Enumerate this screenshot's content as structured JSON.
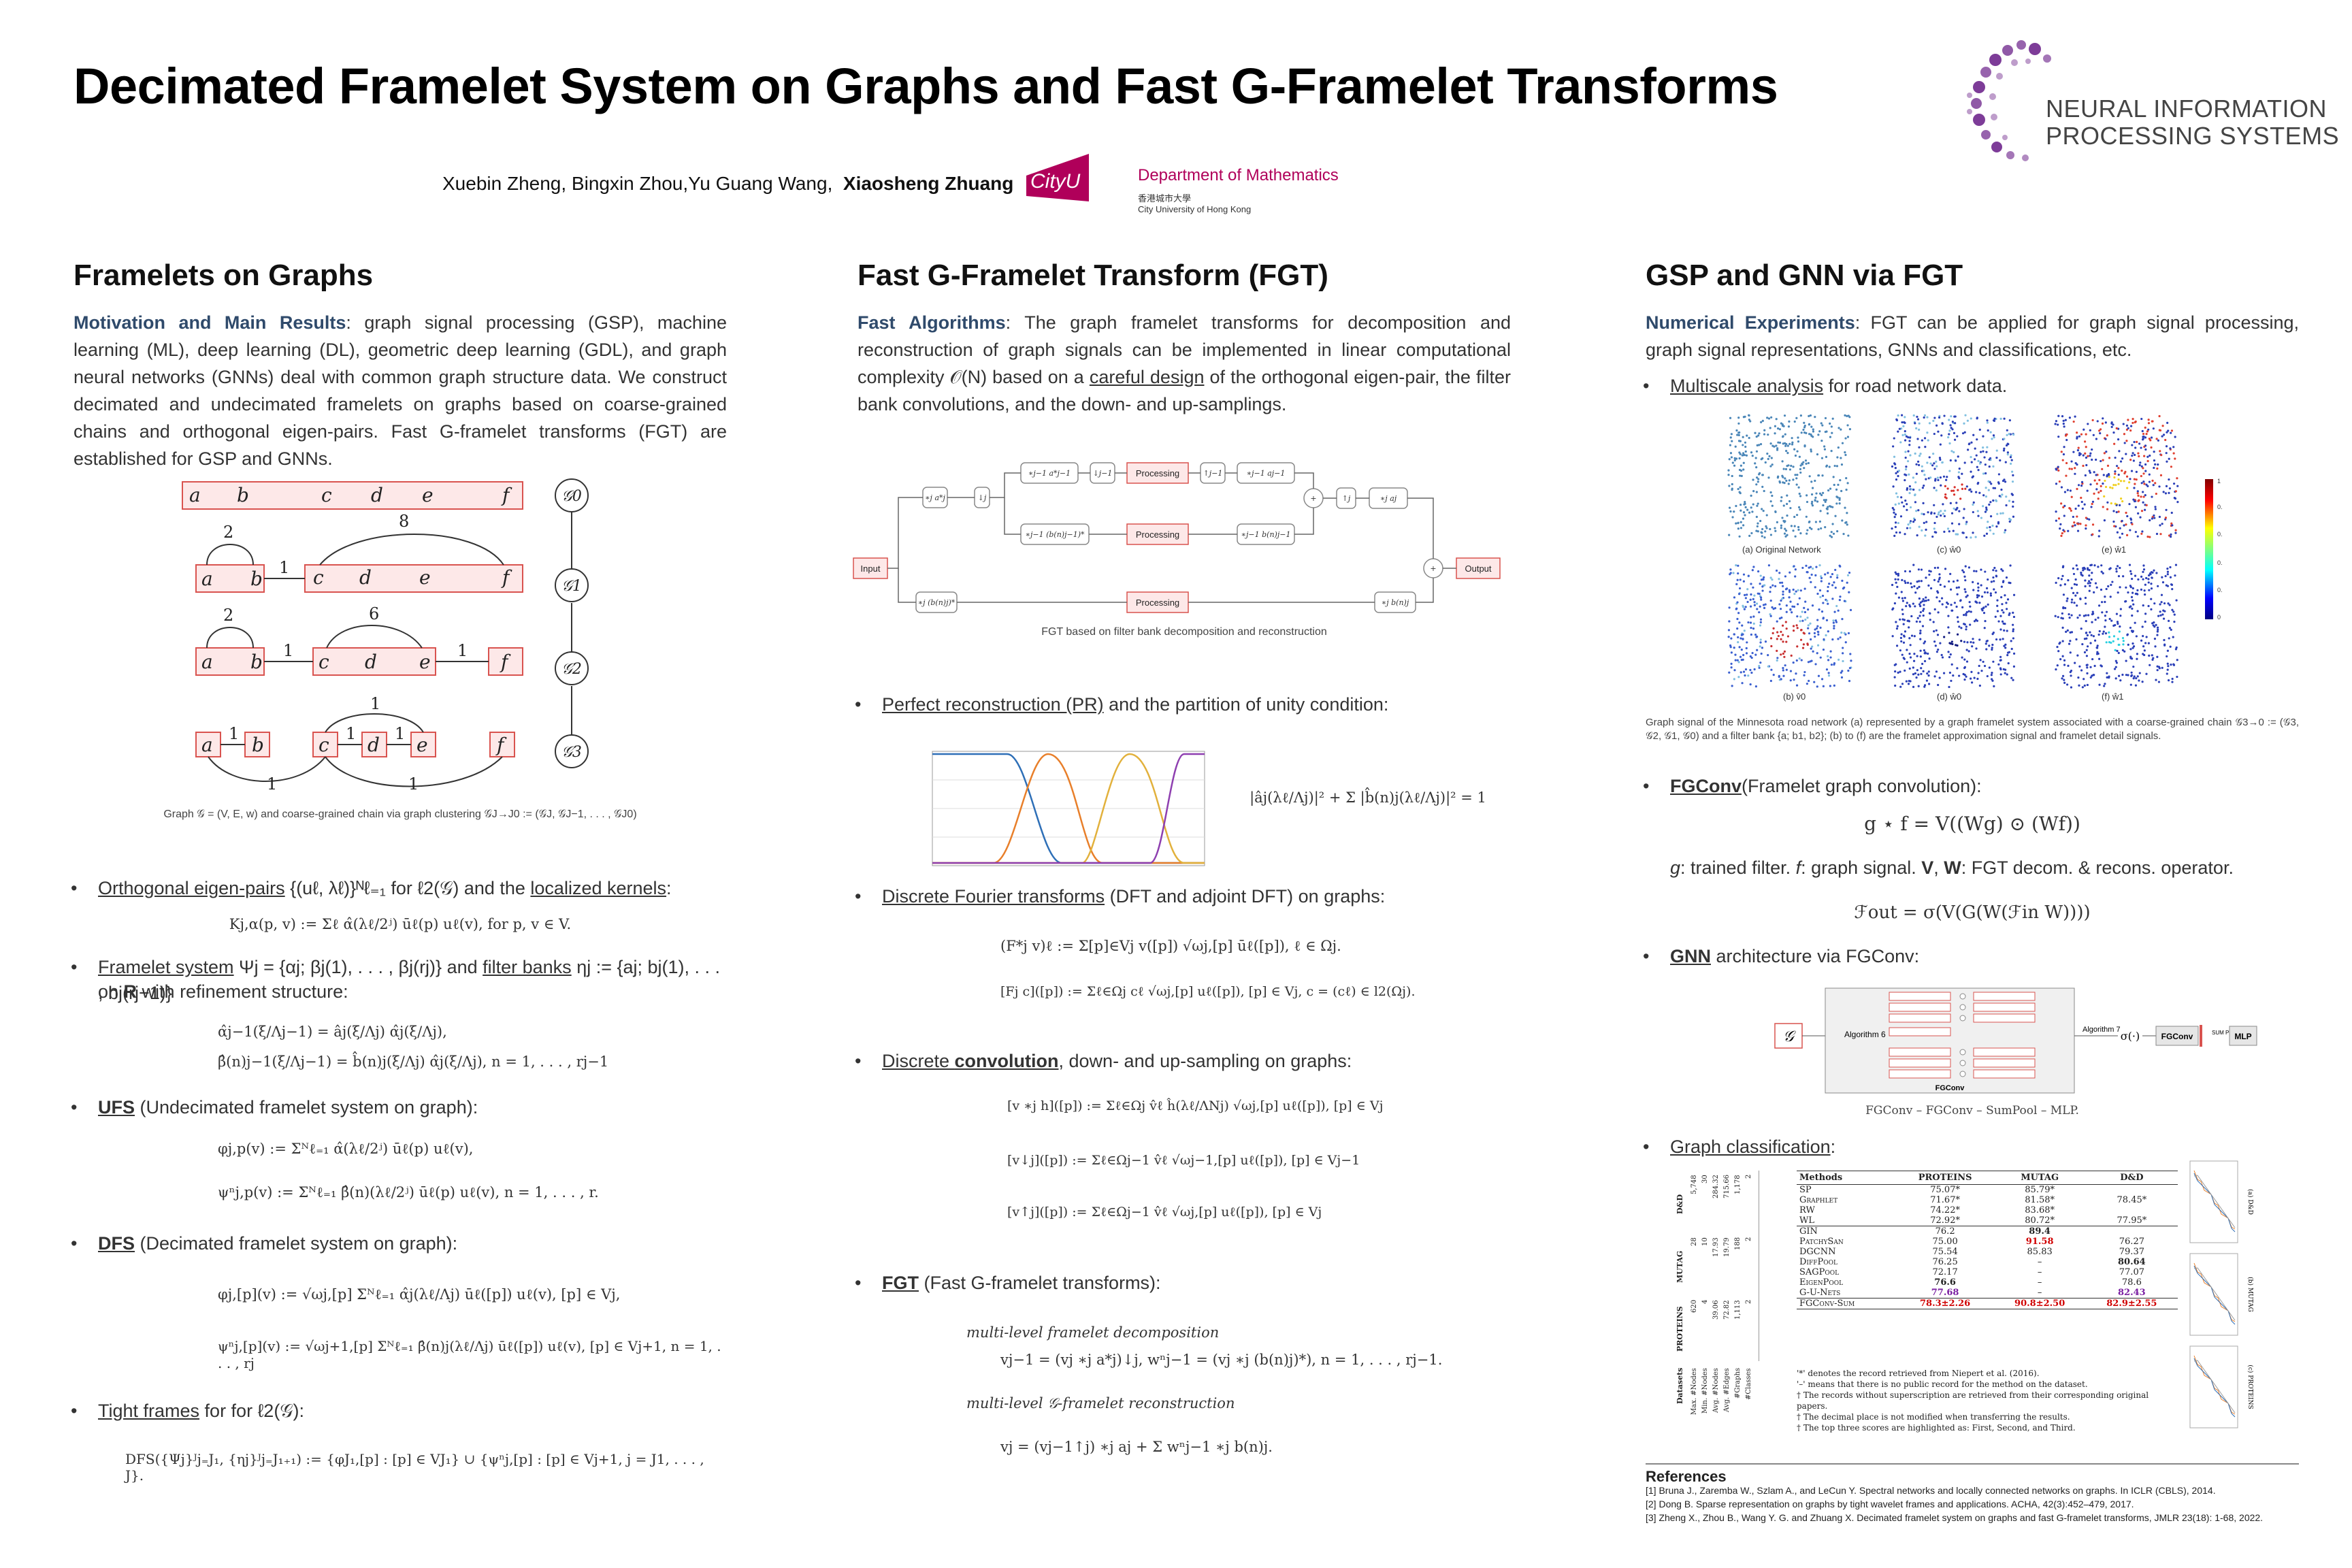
{
  "header": {
    "title": "Decimated Framelet System on Graphs and Fast G-Framelet Transforms",
    "authors": "Xuebin Zheng, Bingxin Zhou,Yu Guang Wang,",
    "corresponding_author": "Xiaosheng Zhuang",
    "cityu_logo_text": "CityU",
    "dept": "Department of Mathematics",
    "dept_cn": "香港城市大學",
    "dept_sub": "City University of Hong Kong",
    "nips_line1": "NEURAL INFORMATION",
    "nips_line2": "PROCESSING SYSTEMS"
  },
  "col1": {
    "heading": "Framelets on Graphs",
    "lead": "Motivation and Main Results",
    "intro": ": graph signal processing (GSP), machine learning (ML), deep learning (DL), geometric deep learning (GDL), and graph neural networks (GNNs) deal with common graph structure data. We construct decimated and undecimated framelets on graphs based on coarse-grained chains and orthogonal eigen-pairs. Fast G-framelet transforms (FGT) are established for GSP and GNNs.",
    "graph_nodes_row0": [
      "a",
      "b",
      "c",
      "d",
      "e",
      "f"
    ],
    "graph_levels": [
      "𝒢0",
      "𝒢1",
      "𝒢2",
      "𝒢3"
    ],
    "edge_labels": [
      "2",
      "8",
      "1",
      "2",
      "6",
      "1",
      "1",
      "1",
      "1",
      "1",
      "1",
      "1",
      "1"
    ],
    "graph_caption": "Graph  𝒢 = (V, E, w)  and  coarse-grained  chain via graph clustering 𝒢J→J0 := (𝒢J, 𝒢J−1, . . . , 𝒢J0)",
    "b1_link": "Orthogonal eigen-pairs",
    "b1_mid": " {(uℓ, λℓ)}ᴺℓ₌₁ for  ℓ2(𝒢) and the ",
    "b1_link2": "localized kernels",
    "b1_end": ":",
    "eq_kernel": "Kj,α(p, v) := Σℓ α̂(λℓ/2ʲ) ūℓ(p) uℓ(v),  for p, v ∈ V.",
    "b2_link": "Framelet system",
    "b2_mid": " Ψj = {αj; βj(1), . . . , βj(rj)} and ",
    "b2_link2": "filter banks",
    "b2_end": " ηj := {aj; bj(1), . . . , bj(rj−1)}",
    "b2_line2a": "on ",
    "b2_line2b": "R",
    "b2_line2c": " with refinement structure:",
    "eq_refine1": "α̂j−1(ξ/Λj−1) = âj(ξ/Λj) α̂j(ξ/Λj),",
    "eq_refine2": "β̂(n)j−1(ξ/Λj−1) = b̂(n)j(ξ/Λj) α̂j(ξ/Λj),    n = 1, . . . , rj−1",
    "b3_link": "UFS",
    "b3_rest": " (Undecimated framelet system on graph):",
    "eq_ufs1": "φj,p(v) := Σᴺℓ₌₁ α̂(λℓ/2ʲ) ūℓ(p) uℓ(v),",
    "eq_ufs2": "ψⁿj,p(v) := Σᴺℓ₌₁ β̂(n)(λℓ/2ʲ) ūℓ(p) uℓ(v),    n = 1, . . . , r.",
    "b4_link": "DFS",
    "b4_rest": " (Decimated framelet system on graph):",
    "eq_dfs1": "φj,[p](v) := √ωj,[p] Σᴺℓ₌₁ α̂j(λℓ/Λj) ūℓ([p]) uℓ(v),    [p] ∈ Vj,",
    "eq_dfs2": "ψⁿj,[p](v) := √ωj+1,[p] Σᴺℓ₌₁ β̂(n)j(λℓ/Λj) ūℓ([p]) uℓ(v),    [p] ∈ Vj+1, n = 1, . . . , rj",
    "b5_link": "Tight frames",
    "b5_rest": " for for ℓ2(𝒢):",
    "eq_tight": "DFS({Ψj}ᴶj₌J₁, {ηj}ᴶj₌J₁₊₁) := {φJ₁,[p] : [p] ∈ VJ₁} ∪ {ψⁿj,[p] : [p] ∈ Vj+1, j = J1, . . . , J}."
  },
  "col2": {
    "heading": "Fast G-Framelet Transform (FGT)",
    "lead": "Fast Algorithms",
    "intro_a": ": The graph framelet transforms for decomposition and reconstruction of graph signals can be implemented in linear computational complexity 𝒪(N) based on a ",
    "intro_link": "careful design",
    "intro_b": " of the orthogonal eigen-pair, the filter bank convolutions, and the down- and up-samplings.",
    "flow_input": "Input",
    "flow_output": "Output",
    "flow_processing": "Processing",
    "flow_caption": "FGT  based  on  filter  bank  decomposition  and  reconstruction",
    "b1_link": "Perfect reconstruction (PR)",
    "b1_rest": " and the partition of unity condition:",
    "eq_pu": "|âj(λℓ/Λj)|² + Σ |b̂(n)j(λℓ/Λj)|² = 1",
    "b2_link": "Discrete Fourier transforms",
    "b2_rest": " (DFT and adjoint DFT) on graphs:",
    "eq_dft1": "(F*j v)ℓ := Σ[p]∈Vj v([p]) √ωj,[p] ūℓ([p]),    ℓ ∈ Ωj.",
    "eq_dft2": "[Fj c]([p]) := Σℓ∈Ωj cℓ √ωj,[p] uℓ([p]),    [p] ∈ Vj,  c = (cℓ) ∈ l2(Ωj).",
    "b3_link1": "Discrete ",
    "b3_link2": "convolution",
    "b3_rest": ", down- and up-sampling on graphs:",
    "eq_conv1": "[v ∗j h]([p]) := Σℓ∈Ωj v̂ℓ ĥ(λℓ/ΛNj) √ωj,[p] uℓ([p]),    [p] ∈ Vj",
    "eq_conv2": "[v↓j]([p]) := Σℓ∈Ωj−1 v̂ℓ √ωj−1,[p] uℓ([p]),    [p] ∈ Vj−1",
    "eq_conv3": "[v↑j]([p]) := Σℓ∈Ωj−1 v̂ℓ √ωj,[p] uℓ([p]),    [p] ∈ Vj",
    "b4_link": "FGT",
    "b4_rest": " (Fast G-framelet transforms):",
    "eq_dec_label": "multi-level framelet decomposition",
    "eq_dec": "vj−1 = (vj ∗j a*j)↓j,    wⁿj−1 = (vj ∗j (b(n)j)*),    n = 1, . . . , rj−1.",
    "eq_rec_label": "multi-level 𝒢-framelet reconstruction",
    "eq_rec": "vj = (vj−1↑j) ∗j aj + Σ wⁿj−1 ∗j b(n)j."
  },
  "col3": {
    "heading": "GSP and GNN via FGT",
    "lead": "Numerical Experiments",
    "intro": ": FGT can be applied for graph signal processing, graph signal representations, GNNs and classifications, etc.",
    "b1_link": "Multiscale analysis",
    "b1_rest": " for road network data.",
    "panel_labels": [
      "(a) Original Network",
      "(c) ŵ0",
      "(e) ŵ1",
      "(b) v̂0",
      "(d) ŵ0",
      "(f) ŵ1"
    ],
    "colorbar_ticks": [
      "1",
      "0.",
      "0.",
      "0.",
      "0.",
      "0"
    ],
    "map_caption": "Graph signal of the Minnesota road network (a) represented by a graph framelet system associated with a coarse-grained chain 𝒢3→0 := (𝒢3, 𝒢2, 𝒢1, 𝒢0) and a filter bank {a; b1, b2}; (b) to (f) are the framelet approximation signal and framelet detail signals.",
    "b2_link": "FGConv",
    "b2_rest": "(Framelet graph convolution):",
    "eq_fgconv": "g ⋆ f = V((Wg) ⊙ (Wf))",
    "fg_desc_a": "g",
    "fg_desc_b": ": trained filter. ",
    "fg_desc_c": "f",
    "fg_desc_d": ": graph signal. ",
    "fg_desc_e": "V",
    "fg_desc_f": ", ",
    "fg_desc_g": "W",
    "fg_desc_h": ": FGT decom. & recons. operator.",
    "eq_fout": "ℱout = σ(V(G(W(ℱin W))))",
    "b3_link": "GNN",
    "b3_rest": " architecture via FGConv:",
    "gnn_g": "𝒢",
    "gnn_alg6": "Algorithm 6",
    "gnn_alg7": "Algorithm 7",
    "gnn_sigma": "σ(·)",
    "gnn_fgconv": "FGConv",
    "gnn_sumpool": "SUM POOL",
    "gnn_mlp": "MLP",
    "gnn_inner": "FGConv",
    "gnn_caption": "FGConv – FGConv – SumPool – MLP.",
    "b4_link": "Graph classification",
    "b4_rest": ":",
    "table": {
      "headers": [
        "Methods",
        "PROTEINS",
        "MUTAG",
        "D&D"
      ],
      "rows": [
        [
          "SP",
          "75.07*",
          "85.79*",
          ""
        ],
        [
          "Graphlet",
          "71.67*",
          "81.58*",
          "78.45*"
        ],
        [
          "RW",
          "74.22*",
          "83.68*",
          ""
        ],
        [
          "WL",
          "72.92*",
          "80.72*",
          "77.95*"
        ],
        [
          "GIN",
          "76.2",
          "89.4",
          ""
        ],
        [
          "PatchySan",
          "75.00",
          "91.58",
          "76.27"
        ],
        [
          "DGCNN",
          "75.54",
          "85.83",
          "79.37"
        ],
        [
          "DiffPool",
          "76.25",
          "–",
          "80.64"
        ],
        [
          "SAGPool",
          "72.17",
          "–",
          "77.07"
        ],
        [
          "EigenPool",
          "76.6",
          "–",
          "78.6"
        ],
        [
          "G-U-Nets",
          "77.68",
          "–",
          "82.43"
        ],
        [
          "FGConv-Sum",
          "78.3±2.26",
          "90.8±2.50",
          "82.9±2.55"
        ]
      ],
      "stat_labels": [
        "Max. #Nodes",
        "Min. #Nodes",
        "Avg. #Nodes",
        "Avg. #Edges",
        "#Graphs",
        "#Classes"
      ],
      "stat_dd": [
        "5,748",
        "30",
        "284.32",
        "715.66",
        "1,178",
        "2"
      ],
      "stat_mutag": [
        "28",
        "10",
        "17.93",
        "19.79",
        "188",
        "2"
      ],
      "stat_proteins": [
        "620",
        "4",
        "39.06",
        "72.82",
        "1,113",
        "2"
      ],
      "group_labels": [
        "Datasets",
        "PROTEINS",
        "MUTAG",
        "D&D"
      ],
      "notes": [
        "'*' denotes the record retrieved from Niepert et al. (2016).",
        "'–' means that there is no public record for the method on the dataset.",
        "† The records without superscription are retrieved from their corresponding original papers.",
        "† The decimal place is not modified when transferring the results.",
        "† The top three scores are highlighted as: First, Second, and Third."
      ],
      "side_labels": [
        "(a) D&D",
        "(b) MUTAG",
        "(c) PROTEINS"
      ]
    },
    "refs_title": "References",
    "refs": [
      "[1] Bruna J., Zaremba W., Szlam A., and LeCun Y. Spectral networks and locally connected networks on graphs. In ICLR (CBLS), 2014.",
      "[2] Dong B. Sparse representation on graphs by tight wavelet frames and applications. ACHA, 42(3):452–479, 2017.",
      "[3] Zheng X., Zhou B., Wang Y. G. and Zhuang X. Decimated framelet system on graphs and fast G-framelet transforms, JMLR 23(18): 1-68, 2022."
    ]
  },
  "colors": {
    "lead": "#2f4a6b",
    "node_red": "#d9534f",
    "node_fill": "#fde8e8",
    "cityu": "#b0005a",
    "nips_purple": "#7d3c98",
    "first": "#d00000",
    "second": "#7a1fa2"
  }
}
